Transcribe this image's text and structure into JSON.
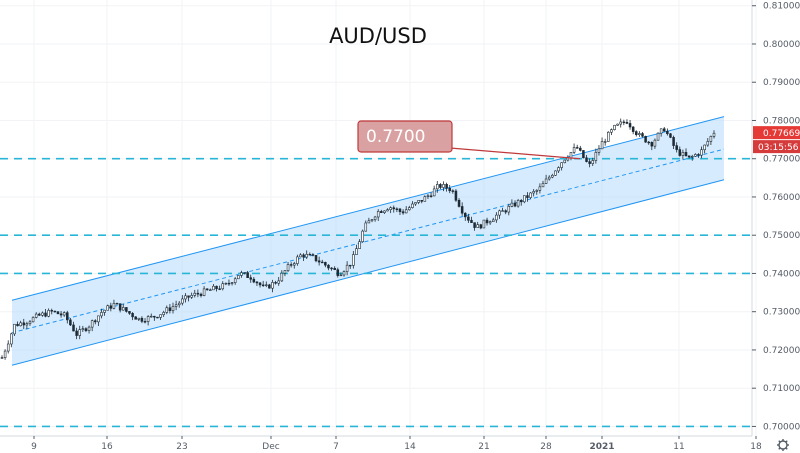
{
  "chart_data": {
    "type": "candlestick",
    "title": "AUD/USD",
    "x_ticks": [
      "9",
      "16",
      "23",
      "Dec",
      "7",
      "14",
      "21",
      "28",
      "2021",
      "11",
      "18"
    ],
    "y_ticks": [
      "0.81000",
      "0.80000",
      "0.79000",
      "0.78000",
      "0.77000",
      "0.76000",
      "0.75000",
      "0.74000",
      "0.73000",
      "0.72000",
      "0.71000",
      "0.70000"
    ],
    "ylim": [
      0.6975,
      0.8115
    ],
    "horizontal_levels": [
      0.77,
      0.75,
      0.74,
      0.7
    ],
    "channel": {
      "upper": {
        "start": 0.733,
        "end": 0.781
      },
      "middle": {
        "start": 0.7245,
        "end": 0.7725
      },
      "lower": {
        "start": 0.716,
        "end": 0.7645
      }
    },
    "callout": {
      "label": "0.7700",
      "value": 0.77
    },
    "last_price": {
      "label": "0.77669",
      "value": 0.77669
    },
    "countdown": {
      "label": "03:15:56"
    },
    "price_points": [
      0.718,
      0.7265,
      0.7275,
      0.729,
      0.73,
      0.729,
      0.724,
      0.7265,
      0.73,
      0.732,
      0.73,
      0.728,
      0.7285,
      0.73,
      0.732,
      0.734,
      0.735,
      0.736,
      0.737,
      0.74,
      0.739,
      0.736,
      0.738,
      0.742,
      0.745,
      0.744,
      0.742,
      0.74,
      0.743,
      0.752,
      0.756,
      0.7575,
      0.756,
      0.758,
      0.76,
      0.763,
      0.762,
      0.7555,
      0.752,
      0.754,
      0.756,
      0.758,
      0.76,
      0.762,
      0.766,
      0.77,
      0.773,
      0.768,
      0.774,
      0.778,
      0.78,
      0.776,
      0.774,
      0.778,
      0.772,
      0.77,
      0.772,
      0.777
    ]
  },
  "colors": {
    "up": "#26a69a",
    "down": "#ef5350",
    "candle": "#1d2a35",
    "channel_line": "#2196f3",
    "channel_fill": "#bbdefb",
    "level_line": "#29b6d6",
    "callout_fill": "#d9a1a1",
    "callout_stroke": "#c0393b",
    "price_tag": "#e53935",
    "timer_tag": "#d63b3b",
    "grid": "#f1f3f6",
    "axis": "#555c66"
  }
}
